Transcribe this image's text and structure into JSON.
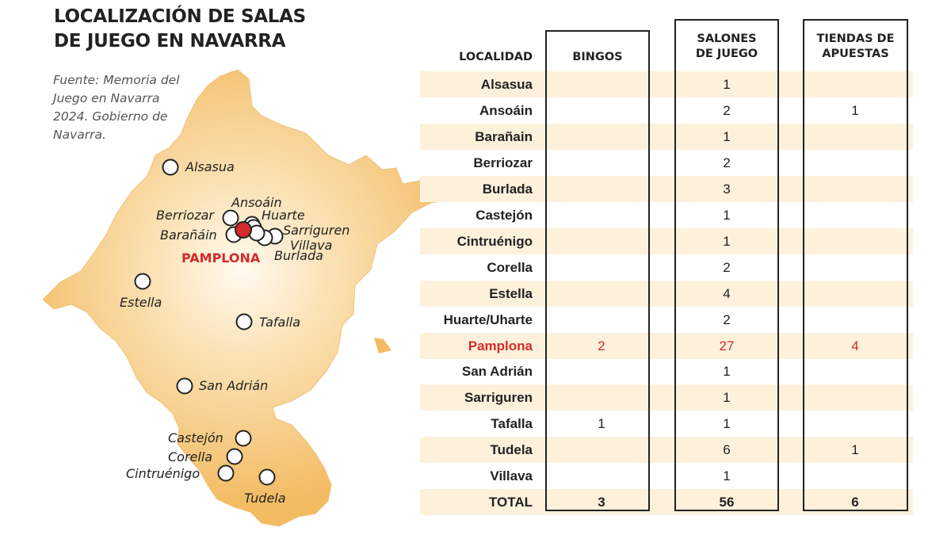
{
  "title": [
    "LOCALIZACIÓN DE SALAS",
    "DE JUEGO EN NAVARRA"
  ],
  "source": "Fuente: Memoria del Juego en Navarra 2024. Gobierno de Navarra.",
  "colors": {
    "map_fill": "#f6c46f",
    "map_center": "#fffaf0",
    "highlight": "#d42a2a",
    "row_band": "#fdf1dc"
  },
  "map": {
    "capital": "PAMPLONA",
    "places": [
      {
        "name": "Alsasua"
      },
      {
        "name": "Ansoáin"
      },
      {
        "name": "Berriozar"
      },
      {
        "name": "Huarte"
      },
      {
        "name": "Barañáin"
      },
      {
        "name": "Sarriguren"
      },
      {
        "name": "Villava"
      },
      {
        "name": "Burlada"
      },
      {
        "name": "Estella"
      },
      {
        "name": "Tafalla"
      },
      {
        "name": "San Adrián"
      },
      {
        "name": "Castejón"
      },
      {
        "name": "Corella"
      },
      {
        "name": "Cintruénigo"
      },
      {
        "name": "Tudela"
      }
    ]
  },
  "table": {
    "headers": {
      "localidad": "LOCALIDAD",
      "bingos": "BINGOS",
      "salones": [
        "SALONES",
        "DE JUEGO"
      ],
      "tiendas": [
        "TIENDAS DE",
        "APUESTAS"
      ]
    },
    "rows": [
      {
        "localidad": "Alsasua",
        "bingos": "",
        "salones": "1",
        "tiendas": ""
      },
      {
        "localidad": "Ansoáin",
        "bingos": "",
        "salones": "2",
        "tiendas": "1"
      },
      {
        "localidad": "Barañain",
        "bingos": "",
        "salones": "1",
        "tiendas": ""
      },
      {
        "localidad": "Berriozar",
        "bingos": "",
        "salones": "2",
        "tiendas": ""
      },
      {
        "localidad": "Burlada",
        "bingos": "",
        "salones": "3",
        "tiendas": ""
      },
      {
        "localidad": "Castejón",
        "bingos": "",
        "salones": "1",
        "tiendas": ""
      },
      {
        "localidad": "Cintruénigo",
        "bingos": "",
        "salones": "1",
        "tiendas": ""
      },
      {
        "localidad": "Corella",
        "bingos": "",
        "salones": "2",
        "tiendas": ""
      },
      {
        "localidad": "Estella",
        "bingos": "",
        "salones": "4",
        "tiendas": ""
      },
      {
        "localidad": "Huarte/Uharte",
        "bingos": "",
        "salones": "2",
        "tiendas": ""
      },
      {
        "localidad": "Pamplona",
        "bingos": "2",
        "salones": "27",
        "tiendas": "4",
        "highlight": true
      },
      {
        "localidad": "San Adrián",
        "bingos": "",
        "salones": "1",
        "tiendas": ""
      },
      {
        "localidad": "Sarriguren",
        "bingos": "",
        "salones": "1",
        "tiendas": ""
      },
      {
        "localidad": "Tafalla",
        "bingos": "1",
        "salones": "1",
        "tiendas": ""
      },
      {
        "localidad": "Tudela",
        "bingos": "",
        "salones": "6",
        "tiendas": "1"
      },
      {
        "localidad": "Villava",
        "bingos": "",
        "salones": "1",
        "tiendas": ""
      }
    ],
    "total": {
      "localidad": "TOTAL",
      "bingos": "3",
      "salones": "56",
      "tiendas": "6"
    }
  }
}
